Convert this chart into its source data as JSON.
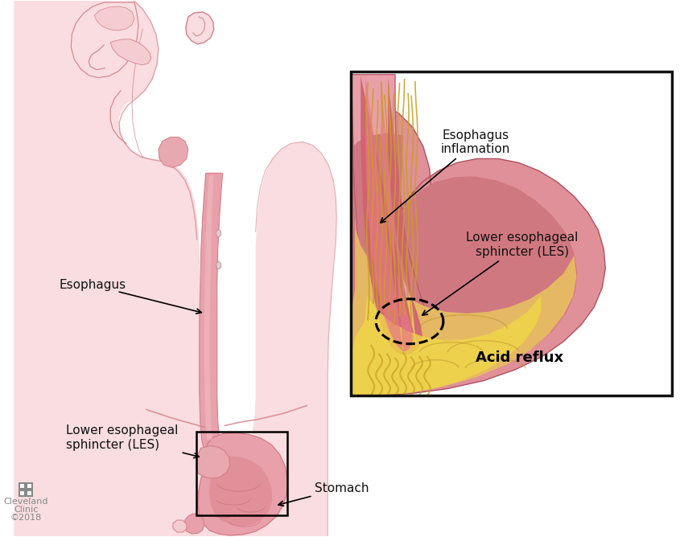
{
  "bg_color": "#ffffff",
  "body_fill": "#f9dde0",
  "body_stroke": "#d4808a",
  "esoph_outer": "#e8a0aa",
  "esoph_inner": "#d87880",
  "esoph_center": "#f0c0c5",
  "stomach_outer": "#e8a0aa",
  "stomach_inner": "#d87880",
  "stomach_light": "#efc0c5",
  "dark_red_line": "#c06070",
  "pink_light": "#f5cdd0",
  "pink_mid": "#e8a8b0",
  "acid_yellow": "#f0d060",
  "acid_orange": "#e8a830",
  "acid_dark": "#c88020",
  "inflammation_red": "#d04050",
  "inset_esoph_outer": "#c05060",
  "inset_esoph_mid": "#d87080",
  "inset_esoph_inner": "#e89098",
  "inset_stomach_dark": "#c05060",
  "inset_stomach_mid": "#d87880",
  "inset_stomach_light": "#e8b0b8",
  "text_color": "#111111",
  "label_fontsize": 11,
  "annotation_fontsize": 11,
  "box_color": "#111111",
  "logo_color": "#888888",
  "labels": {
    "esophagus": "Esophagus",
    "les": "Lower esophageal\nsphincter (LES)",
    "stomach": "Stomach",
    "esophagus_inflammation": "Esophagus\ninflamation",
    "les_detail": "Lower esophageal\nsphincter (LES)",
    "acid_reflux": "Acid reflux"
  },
  "clinic_text": [
    "Cleveland",
    "Clinic",
    "©2018"
  ]
}
